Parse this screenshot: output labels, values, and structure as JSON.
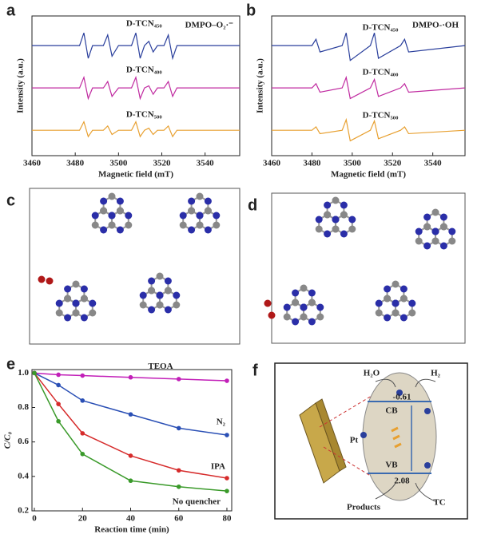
{
  "chart_data": [
    {
      "type": "line",
      "label": "a",
      "annotation": "DMPO–O₂·⁻",
      "xlabel": "Magnetic field (mT)",
      "ylabel": "Intensity (a.u.)",
      "x": [
        3460,
        3482,
        3484,
        3486,
        3488,
        3493,
        3495,
        3497,
        3500,
        3506,
        3508,
        3510,
        3512,
        3514,
        3516,
        3518,
        3521,
        3523,
        3525,
        3527,
        3556
      ],
      "series": [
        {
          "name": "D-TCN₄₅₀",
          "color": "#2a3f9c",
          "values": [
            3,
            3,
            3.3,
            2.7,
            3,
            3,
            3.25,
            2.75,
            3,
            3,
            3.3,
            2.7,
            3,
            3.1,
            2.85,
            3,
            3,
            3.25,
            2.7,
            3,
            3
          ]
        },
        {
          "name": "D-TCN₄₀₀",
          "color": "#c02aa0",
          "values": [
            2,
            2,
            2.25,
            1.75,
            2,
            2,
            2.15,
            1.8,
            2,
            2,
            2.25,
            1.75,
            2,
            2.05,
            1.85,
            2,
            2,
            2.15,
            1.8,
            2,
            2
          ]
        },
        {
          "name": "D-TCN₅₀₀",
          "color": "#e8a030",
          "values": [
            1,
            1,
            1.2,
            0.85,
            1,
            1,
            1.1,
            0.9,
            1,
            1,
            1.2,
            0.85,
            1,
            1.05,
            0.9,
            1,
            1,
            1.1,
            0.85,
            1,
            1
          ]
        }
      ],
      "xlim": [
        3460,
        3556
      ],
      "xticks": [
        3460,
        3480,
        3500,
        3520,
        3540
      ],
      "ylim": [
        0.4,
        3.7
      ]
    },
    {
      "type": "line",
      "label": "b",
      "annotation": "DMPO-·OH",
      "xlabel": "Magnetic field (mT)",
      "ylabel": "Intensity (a.u.)",
      "x": [
        3460,
        3480,
        3482,
        3484,
        3495,
        3497,
        3499,
        3509,
        3511,
        3513,
        3524,
        3526,
        3528,
        3556
      ],
      "series": [
        {
          "name": "D-TCN₄₅₀",
          "color": "#2a3f9c",
          "values": [
            3,
            3,
            3.15,
            2.85,
            3,
            3.3,
            2.65,
            3,
            3.3,
            2.7,
            3,
            3.15,
            2.85,
            3
          ]
        },
        {
          "name": "D-TCN₄₀₀",
          "color": "#c02aa0",
          "values": [
            2,
            2,
            2.1,
            1.9,
            2,
            2.25,
            1.75,
            2,
            2.2,
            1.8,
            2,
            2.1,
            1.9,
            2
          ]
        },
        {
          "name": "D-TCN₅₀₀",
          "color": "#e8a030",
          "values": [
            1,
            1,
            1.08,
            0.92,
            1,
            1.25,
            0.75,
            1,
            1.22,
            0.8,
            1,
            1.08,
            0.92,
            1
          ]
        }
      ],
      "xlim": [
        3460,
        3556
      ],
      "xticks": [
        3460,
        3480,
        3500,
        3520,
        3540
      ],
      "ylim": [
        0.4,
        3.7
      ]
    },
    {
      "type": "line",
      "label": "e",
      "xlabel": "Reaction time (min)",
      "ylabel": "C/C₀",
      "markers": true,
      "x": [
        0,
        10,
        20,
        40,
        60,
        80
      ],
      "series": [
        {
          "name": "TEOA",
          "color": "#c21fb8",
          "values": [
            1,
            0.99,
            0.985,
            0.975,
            0.965,
            0.955
          ]
        },
        {
          "name": "N₂",
          "color": "#2a4fb5",
          "values": [
            1,
            0.93,
            0.84,
            0.76,
            0.68,
            0.64
          ]
        },
        {
          "name": "IPA",
          "color": "#d62b2b",
          "values": [
            1,
            0.82,
            0.65,
            0.52,
            0.435,
            0.39
          ]
        },
        {
          "name": "No quencher",
          "color": "#3a9a2a",
          "values": [
            1,
            0.72,
            0.53,
            0.375,
            0.34,
            0.315
          ]
        }
      ],
      "xlim": [
        -1,
        82
      ],
      "xticks": [
        0,
        20,
        40,
        60,
        80
      ],
      "ylim": [
        0.2,
        1.02
      ],
      "yticks": [
        0.2,
        0.4,
        0.6,
        0.8,
        {
          "value": 1.0,
          "label": "1.0"
        }
      ]
    }
  ],
  "diagrams": {
    "c": {
      "label": "c"
    },
    "d": {
      "label": "d"
    },
    "f": {
      "label": "f",
      "water": "H₂O",
      "hydrogen": "H₂",
      "cb_potential": "-0.61",
      "cb": "CB",
      "pt": "Pt",
      "vb": "VB",
      "vb_potential": "2.08",
      "products": "Products",
      "tc": "TC"
    }
  }
}
